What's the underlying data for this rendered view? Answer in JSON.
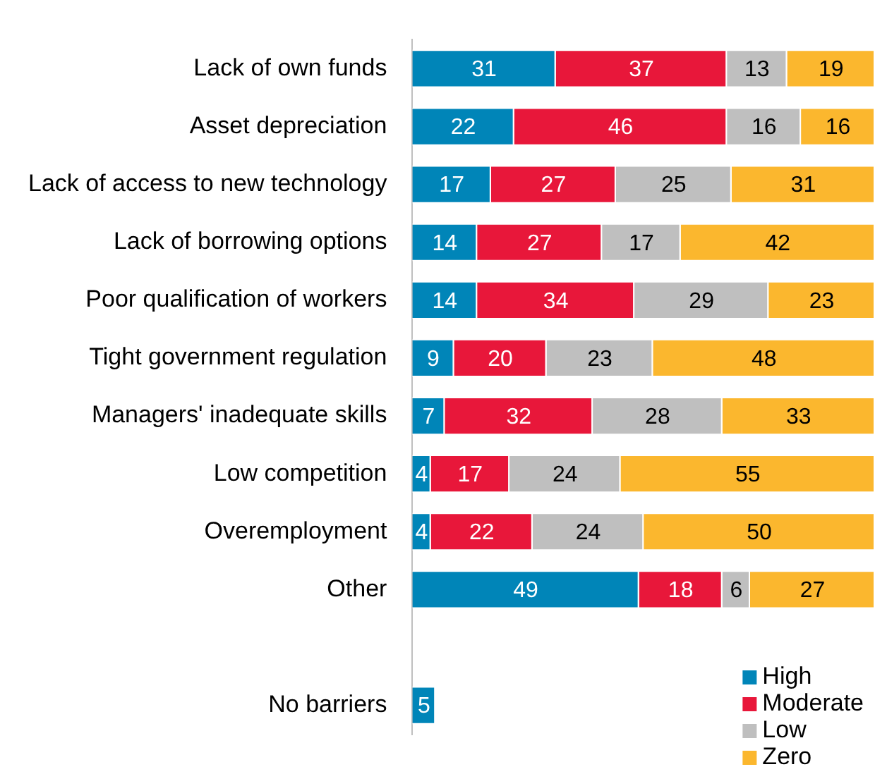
{
  "chart_data": {
    "type": "bar",
    "orientation": "horizontal",
    "stacked": true,
    "data_labels": true,
    "legend": "bottom right",
    "grid": false,
    "tick_labels": "y",
    "xlim": [
      0,
      100
    ],
    "categories": [
      "Lack of own funds",
      "Asset depreciation",
      "Lack of access to new technology",
      "Lack of borrowing options",
      "Poor qualification of workers",
      "Tight government regulation",
      "Managers' inadequate skills",
      "Low competition",
      "Overemployment",
      "Other",
      null,
      "No barriers"
    ],
    "series": [
      {
        "name": "High",
        "color": "#0085b8",
        "values": [
          31,
          22,
          17,
          14,
          14,
          9,
          7,
          4,
          4,
          49,
          null,
          5
        ]
      },
      {
        "name": "Moderate",
        "color": "#e8173a",
        "values": [
          37,
          46,
          27,
          27,
          34,
          20,
          32,
          17,
          22,
          18,
          null,
          null
        ]
      },
      {
        "name": "Low",
        "color": "#bfbfbf",
        "values": [
          13,
          16,
          25,
          17,
          29,
          23,
          28,
          24,
          24,
          6,
          null,
          null
        ]
      },
      {
        "name": "Zero",
        "color": "#fbb72e",
        "values": [
          19,
          16,
          31,
          42,
          23,
          48,
          33,
          55,
          50,
          27,
          null,
          null
        ]
      }
    ]
  }
}
